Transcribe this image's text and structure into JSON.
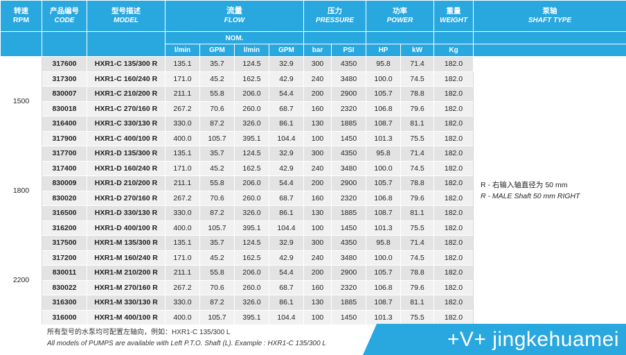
{
  "headers": {
    "rpm": {
      "cn": "转速",
      "en": "RPM"
    },
    "code": {
      "cn": "产品编号",
      "en": "CODE"
    },
    "model": {
      "cn": "型号描述",
      "en": "MODEL"
    },
    "flow": {
      "cn": "流量",
      "en": "FLOW"
    },
    "nom": "NOM.",
    "pressure": {
      "cn": "压力",
      "en": "PRESSURE"
    },
    "power": {
      "cn": "功率",
      "en": "POWER"
    },
    "weight": {
      "cn": "重量",
      "en": "WEIGHT"
    },
    "shaft": {
      "cn": "泵轴",
      "en": "SHAFT TYPE"
    }
  },
  "units": [
    "l/min",
    "GPM",
    "l/min",
    "GPM",
    "bar",
    "PSI",
    "HP",
    "kW",
    "Kg"
  ],
  "groups": [
    {
      "rpm": "1500",
      "rows": [
        {
          "code": "317600",
          "model": "HXR1-C 135/300 R",
          "v": [
            "135.1",
            "35.7",
            "124.5",
            "32.9",
            "300",
            "4350",
            "95.8",
            "71.4",
            "182.0"
          ]
        },
        {
          "code": "317300",
          "model": "HXR1-C 160/240 R",
          "v": [
            "171.0",
            "45.2",
            "162.5",
            "42.9",
            "240",
            "3480",
            "100.0",
            "74.5",
            "182.0"
          ]
        },
        {
          "code": "830007",
          "model": "HXR1-C 210/200 R",
          "v": [
            "211.1",
            "55.8",
            "206.0",
            "54.4",
            "200",
            "2900",
            "105.7",
            "78.8",
            "182.0"
          ]
        },
        {
          "code": "830018",
          "model": "HXR1-C 270/160 R",
          "v": [
            "267.2",
            "70.6",
            "260.0",
            "68.7",
            "160",
            "2320",
            "106.8",
            "79.6",
            "182.0"
          ]
        },
        {
          "code": "316400",
          "model": "HXR1-C 330/130 R",
          "v": [
            "330.0",
            "87.2",
            "326.0",
            "86.1",
            "130",
            "1885",
            "108.7",
            "81.1",
            "182.0"
          ]
        },
        {
          "code": "317900",
          "model": "HXR1-C 400/100 R",
          "v": [
            "400.0",
            "105.7",
            "395.1",
            "104.4",
            "100",
            "1450",
            "101.3",
            "75.5",
            "182.0"
          ]
        }
      ]
    },
    {
      "rpm": "1800",
      "rows": [
        {
          "code": "317700",
          "model": "HXR1-D 135/300 R",
          "v": [
            "135.1",
            "35.7",
            "124.5",
            "32.9",
            "300",
            "4350",
            "95.8",
            "71.4",
            "182.0"
          ]
        },
        {
          "code": "317400",
          "model": "HXR1-D 160/240 R",
          "v": [
            "171.0",
            "45.2",
            "162.5",
            "42.9",
            "240",
            "3480",
            "100.0",
            "74.5",
            "182.0"
          ]
        },
        {
          "code": "830009",
          "model": "HXR1-D 210/200 R",
          "v": [
            "211.1",
            "55.8",
            "206.0",
            "54.4",
            "200",
            "2900",
            "105.7",
            "78.8",
            "182.0"
          ]
        },
        {
          "code": "830020",
          "model": "HXR1-D 270/160 R",
          "v": [
            "267.2",
            "70.6",
            "260.0",
            "68.7",
            "160",
            "2320",
            "106.8",
            "79.6",
            "182.0"
          ]
        },
        {
          "code": "316500",
          "model": "HXR1-D 330/130 R",
          "v": [
            "330.0",
            "87.2",
            "326.0",
            "86.1",
            "130",
            "1885",
            "108.7",
            "81.1",
            "182.0"
          ]
        },
        {
          "code": "316200",
          "model": "HXR1-D 400/100 R",
          "v": [
            "400.0",
            "105.7",
            "395.1",
            "104.4",
            "100",
            "1450",
            "101.3",
            "75.5",
            "182.0"
          ]
        }
      ]
    },
    {
      "rpm": "2200",
      "rows": [
        {
          "code": "317500",
          "model": "HXR1-M 135/300 R",
          "v": [
            "135.1",
            "35.7",
            "124.5",
            "32.9",
            "300",
            "4350",
            "95.8",
            "71.4",
            "182.0"
          ]
        },
        {
          "code": "317200",
          "model": "HXR1-M 160/240 R",
          "v": [
            "171.0",
            "45.2",
            "162.5",
            "42.9",
            "240",
            "3480",
            "100.0",
            "74.5",
            "182.0"
          ]
        },
        {
          "code": "830011",
          "model": "HXR1-M 210/200 R",
          "v": [
            "211.1",
            "55.8",
            "206.0",
            "54.4",
            "200",
            "2900",
            "105.7",
            "78.8",
            "182.0"
          ]
        },
        {
          "code": "830022",
          "model": "HXR1-M 270/160 R",
          "v": [
            "267.2",
            "70.6",
            "260.0",
            "68.7",
            "160",
            "2320",
            "106.8",
            "79.6",
            "182.0"
          ]
        },
        {
          "code": "316300",
          "model": "HXR1-M 330/130 R",
          "v": [
            "330.0",
            "87.2",
            "326.0",
            "86.1",
            "130",
            "1885",
            "108.7",
            "81.1",
            "182.0"
          ]
        },
        {
          "code": "316000",
          "model": "HXR1-M 400/100 R",
          "v": [
            "400.0",
            "105.7",
            "395.1",
            "104.4",
            "100",
            "1450",
            "101.3",
            "75.5",
            "182.0"
          ]
        }
      ]
    }
  ],
  "shaft_note": {
    "cn": "R - 右输入轴直径为 50 mm",
    "en": "R - MALE Shaft 50 mm RIGHT"
  },
  "footnote": {
    "cn": "所有型号的水泵均可配置左轴向，例如：HXR1-C 135/300 L",
    "en": "All models of PUMPS are available with Left P.T.O. Shaft (L). Example : HXR1-C 135/300 L"
  },
  "watermark": "+V+ jingkehuamei",
  "colors": {
    "header": "#29a7df",
    "row_odd": "#e3e3e3",
    "row_even": "#f1f1f1"
  }
}
